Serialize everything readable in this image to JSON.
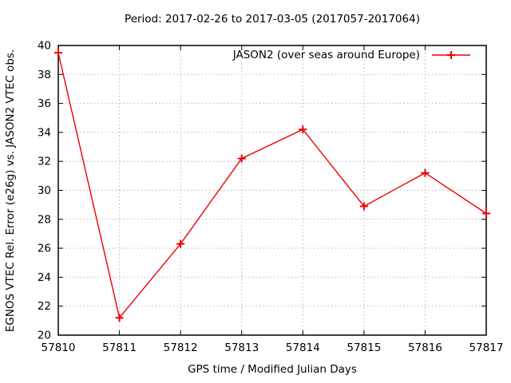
{
  "chart_data": {
    "type": "line",
    "title": "Period: 2017-02-26 to 2017-03-05 (2017057-2017064)",
    "xlabel": "GPS time / Modified Julian Days",
    "ylabel": "EGNOS VTEC Rel. Error (e26g) vs. JASON2 VTEC obs.",
    "series": [
      {
        "name": "JASON2 (over seas around Europe)",
        "x": [
          57810,
          57811,
          57812,
          57813,
          57814,
          57815,
          57816,
          57817
        ],
        "y": [
          39.5,
          21.2,
          26.3,
          32.2,
          34.2,
          28.9,
          31.2,
          28.4
        ],
        "color": "#ee0000",
        "marker": "plus"
      }
    ],
    "xlim": [
      57810,
      57817
    ],
    "ylim": [
      20,
      40
    ],
    "xticks": [
      "57810",
      "57811",
      "57812",
      "57813",
      "57814",
      "57815",
      "57816",
      "57817"
    ],
    "yticks": [
      "20",
      "22",
      "24",
      "26",
      "28",
      "30",
      "32",
      "34",
      "36",
      "38",
      "40"
    ],
    "grid": true,
    "legend_position": "top-right-inside",
    "grid_color": "#b8b8b8",
    "axis_color": "#000000",
    "text_color": "#000000",
    "background": "#ffffff"
  }
}
